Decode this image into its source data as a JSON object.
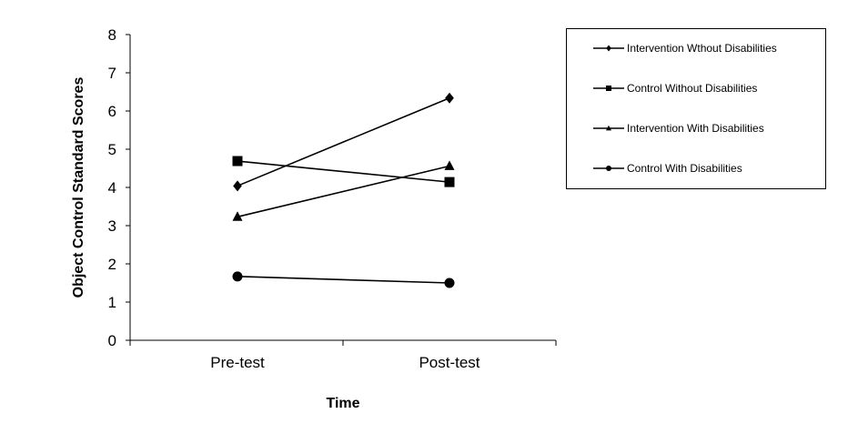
{
  "chart_data": {
    "type": "line",
    "title": "",
    "xlabel": "Time",
    "ylabel": "Object Control Standard Scores",
    "categories": [
      "Pre-test",
      "Post-test"
    ],
    "ylim": [
      0,
      8
    ],
    "yticks": [
      "0",
      "1",
      "2",
      "3",
      "4",
      "5",
      "6",
      "7",
      "8"
    ],
    "grid": false,
    "legend_position": "right",
    "series": [
      {
        "name": "Intervention Wthout Disabilities",
        "marker": "diamond",
        "values": [
          4.04,
          6.34
        ]
      },
      {
        "name": "Control Without Disabilities",
        "marker": "square",
        "values": [
          4.69,
          4.14
        ]
      },
      {
        "name": "Intervention With Disabilities",
        "marker": "triangle",
        "values": [
          3.23,
          4.56
        ]
      },
      {
        "name": "Control With Disabilities",
        "marker": "circle",
        "values": [
          1.67,
          1.5
        ]
      }
    ],
    "line_color": "#000000"
  }
}
